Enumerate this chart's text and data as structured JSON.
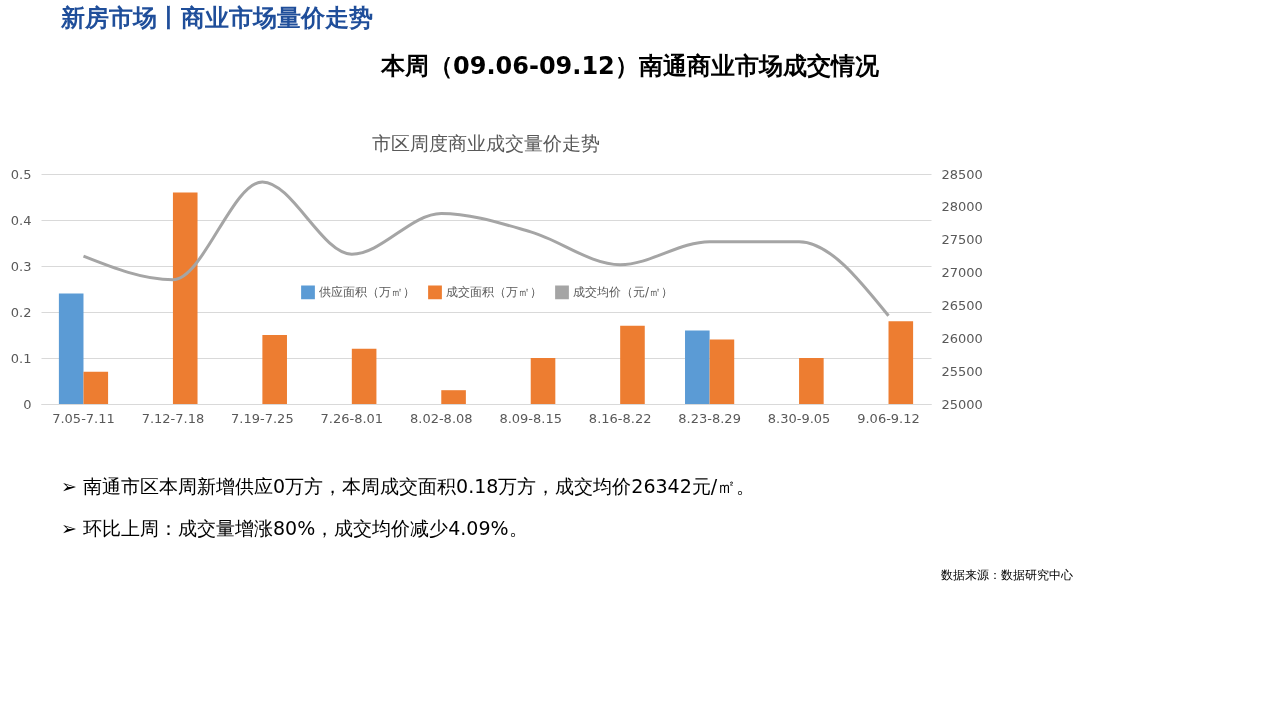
{
  "chart_data": {
    "type": "bar",
    "title": "市区周度商业成交量价走势",
    "categories": [
      "7.05-7.11",
      "7.12-7.18",
      "7.19-7.25",
      "7.26-8.01",
      "8.02-8.08",
      "8.09-8.15",
      "8.16-8.22",
      "8.23-8.29",
      "8.30-9.05",
      "9.06-9.12"
    ],
    "series": [
      {
        "name": "供应面积（万㎡）",
        "color": "#5b9bd5",
        "values": [
          0.24,
          null,
          null,
          null,
          null,
          null,
          null,
          0.16,
          null,
          null
        ]
      },
      {
        "name": "成交面积（万㎡）",
        "color": "#ed7d31",
        "values": [
          0.07,
          0.46,
          0.15,
          0.12,
          0.03,
          0.1,
          0.17,
          0.14,
          0.1,
          0.18
        ]
      },
      {
        "name": "成交均价（元/㎡）",
        "color": "#a5a5a5",
        "type": "line",
        "axis": "y2",
        "values": [
          27250,
          26890,
          28380,
          27280,
          27900,
          27620,
          27120,
          27470,
          27470,
          26342
        ]
      }
    ],
    "ylim": [
      0,
      0.5
    ],
    "yticks": [
      0,
      0.1,
      0.2,
      0.3,
      0.4,
      0.5
    ],
    "y2lim": [
      25000,
      28500
    ],
    "y2ticks": [
      25000,
      25500,
      26000,
      26500,
      27000,
      27500,
      28000,
      28500
    ],
    "grid": "y",
    "legend": "bottom",
    "marker": "none",
    "annotations": [
      "新房市场丨商业市场量价走势",
      "本周（09.06-09.12）南通商业市场成交情况",
      "➢  南通市区本周新增供应0万方，本周成交面积0.18万方，成交均价26342元/㎡。",
      "➢  环比上周：成交量增涨80%，成交均价减少4.09%。",
      "数据来源：数据研究中心"
    ]
  }
}
